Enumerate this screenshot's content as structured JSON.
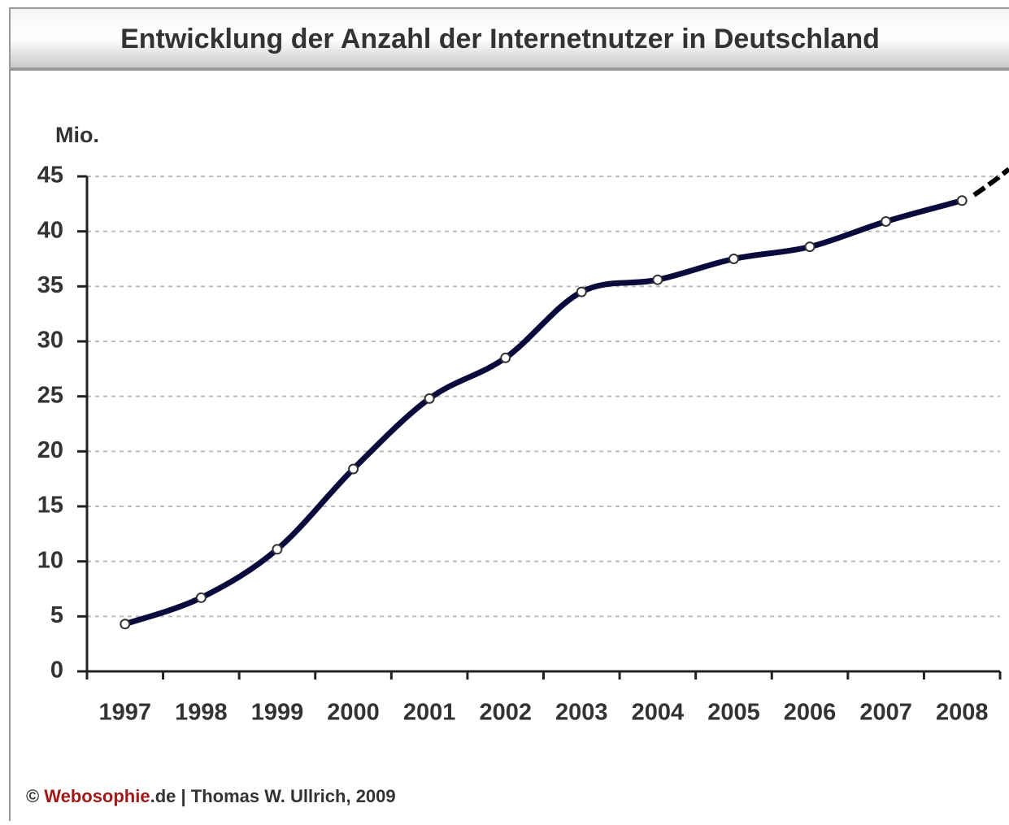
{
  "chart_data": {
    "type": "line",
    "title": "Entwicklung der Anzahl der Internetnutzer in Deutschland",
    "y_label": "Mio.",
    "categories": [
      "1997",
      "1998",
      "1999",
      "2000",
      "2001",
      "2002",
      "2003",
      "2004",
      "2005",
      "2006",
      "2007",
      "2008"
    ],
    "series": [
      {
        "name": "Internetnutzer",
        "color": "#0a0a3c",
        "values": [
          4.3,
          6.7,
          11.1,
          18.4,
          24.8,
          28.5,
          34.5,
          35.6,
          37.5,
          38.6,
          40.9,
          42.8
        ]
      }
    ],
    "ylim": [
      0,
      45
    ],
    "yticks": [
      0,
      5,
      10,
      15,
      20,
      25,
      30,
      35,
      40,
      45
    ],
    "grid": true,
    "footer": [
      "©",
      "Webosophie",
      ".de | Thomas W. Ullrich, 2009"
    ]
  }
}
